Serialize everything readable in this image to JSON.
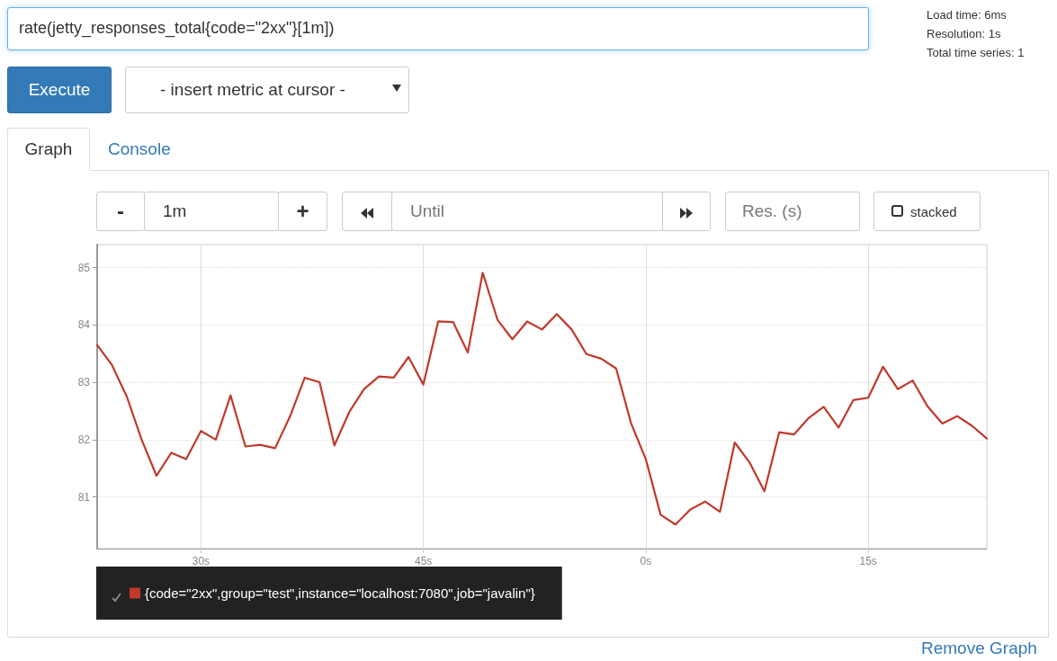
{
  "chart_data": {
    "type": "line",
    "title": "rate(jetty_responses_total{code=\"2xx\"}[1m])",
    "annotations": [
      "Load time: 6ms",
      "Resolution: 1s",
      "Total time series: 1",
      "Execute",
      "- insert metric at cursor -",
      "Graph",
      "Console",
      "-",
      "1m",
      "+",
      "Until",
      "Res. (s)",
      "stacked",
      "Remove Graph"
    ],
    "categories": [
      null,
      null,
      null,
      null,
      null,
      null,
      null,
      "30s",
      null,
      null,
      null,
      null,
      null,
      null,
      null,
      null,
      null,
      null,
      null,
      null,
      null,
      null,
      "45s",
      null,
      null,
      null,
      null,
      null,
      null,
      null,
      null,
      null,
      null,
      null,
      null,
      null,
      null,
      "0s",
      null,
      null,
      null,
      null,
      null,
      null,
      null,
      null,
      null,
      null,
      null,
      null,
      null,
      null,
      "15s",
      null,
      null,
      null,
      null,
      null,
      null,
      null,
      null
    ],
    "series": [
      {
        "name": "{code=\"2xx\",group=\"test\",instance=\"localhost:7080\",job=\"javalin\"}",
        "color": "#c0392b",
        "values": [
          83.65,
          83.3,
          82.75,
          82.0,
          81.37,
          81.77,
          81.66,
          82.15,
          82.0,
          82.77,
          81.88,
          81.91,
          81.85,
          82.4,
          83.08,
          83.0,
          81.9,
          82.48,
          82.88,
          83.1,
          83.08,
          83.44,
          82.96,
          84.06,
          84.05,
          83.52,
          84.91,
          84.09,
          83.75,
          84.06,
          83.92,
          84.19,
          83.92,
          83.49,
          83.41,
          83.24,
          82.29,
          81.66,
          80.69,
          80.52,
          80.78,
          80.92,
          80.74,
          81.95,
          81.6,
          81.1,
          82.13,
          82.09,
          82.38,
          82.57,
          82.21,
          82.69,
          82.73,
          83.27,
          82.88,
          83.03,
          82.58,
          82.28,
          82.41,
          82.24,
          82.02
        ]
      }
    ],
    "ylim": [
      80.1,
      85.4
    ],
    "yticks": [
      81,
      82,
      83,
      84,
      85
    ],
    "grid": true,
    "legend": "bottom left",
    "marker": "none",
    "line_style": "solid"
  }
}
